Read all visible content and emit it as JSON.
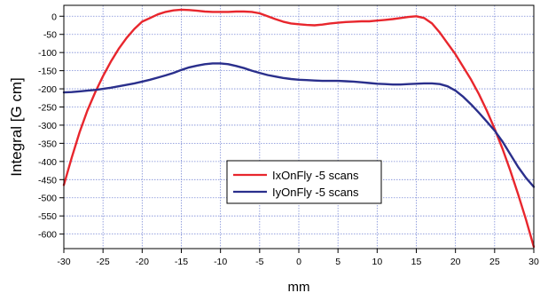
{
  "chart_data": {
    "type": "line",
    "title": "",
    "xlabel": "mm",
    "ylabel": "Integral [G cm]",
    "xlim": [
      -30,
      30
    ],
    "ylim": [
      -640,
      30
    ],
    "xticks": [
      -30,
      -25,
      -20,
      -15,
      -10,
      -5,
      0,
      5,
      10,
      15,
      20,
      25,
      30
    ],
    "yticks": [
      0,
      -50,
      -100,
      -150,
      -200,
      -250,
      -300,
      -350,
      -400,
      -450,
      -500,
      -550,
      -600
    ],
    "grid": true,
    "legend_position": "lower-center",
    "series": [
      {
        "name": "IxOnFly -5 scans",
        "color": "#e8262d",
        "x": [
          -30,
          -29,
          -28,
          -27,
          -26,
          -25,
          -24,
          -23,
          -22,
          -21,
          -20,
          -19,
          -18,
          -17,
          -16,
          -15,
          -14,
          -13,
          -12,
          -11,
          -10,
          -9,
          -8,
          -7,
          -6,
          -5,
          -4,
          -3,
          -2,
          -1,
          0,
          1,
          2,
          3,
          4,
          5,
          6,
          7,
          8,
          9,
          10,
          11,
          12,
          13,
          14,
          15,
          16,
          17,
          18,
          19,
          20,
          21,
          22,
          23,
          24,
          25,
          26,
          27,
          28,
          29,
          30
        ],
        "y": [
          -465,
          -390,
          -320,
          -260,
          -210,
          -165,
          -125,
          -90,
          -60,
          -35,
          -15,
          -5,
          5,
          12,
          16,
          18,
          17,
          15,
          13,
          12,
          12,
          12,
          13,
          13,
          12,
          8,
          0,
          -8,
          -15,
          -20,
          -22,
          -24,
          -25,
          -23,
          -20,
          -18,
          -16,
          -15,
          -14,
          -14,
          -12,
          -10,
          -8,
          -5,
          -2,
          0,
          -5,
          -20,
          -45,
          -75,
          -105,
          -140,
          -175,
          -215,
          -260,
          -310,
          -365,
          -425,
          -490,
          -560,
          -635
        ]
      },
      {
        "name": "IyOnFly -5 scans",
        "color": "#2a2f8c",
        "x": [
          -30,
          -29,
          -28,
          -27,
          -26,
          -25,
          -24,
          -23,
          -22,
          -21,
          -20,
          -19,
          -18,
          -17,
          -16,
          -15,
          -14,
          -13,
          -12,
          -11,
          -10,
          -9,
          -8,
          -7,
          -6,
          -5,
          -4,
          -3,
          -2,
          -1,
          0,
          1,
          2,
          3,
          4,
          5,
          6,
          7,
          8,
          9,
          10,
          11,
          12,
          13,
          14,
          15,
          16,
          17,
          18,
          19,
          20,
          21,
          22,
          23,
          24,
          25,
          26,
          27,
          28,
          29,
          30
        ],
        "y": [
          -210,
          -209,
          -207,
          -205,
          -203,
          -200,
          -197,
          -193,
          -189,
          -185,
          -180,
          -175,
          -169,
          -163,
          -156,
          -148,
          -141,
          -136,
          -132,
          -130,
          -130,
          -132,
          -137,
          -143,
          -150,
          -156,
          -162,
          -166,
          -170,
          -173,
          -175,
          -176,
          -177,
          -178,
          -178,
          -178,
          -179,
          -180,
          -182,
          -184,
          -186,
          -187,
          -188,
          -188,
          -187,
          -186,
          -185,
          -185,
          -187,
          -193,
          -205,
          -222,
          -243,
          -266,
          -290,
          -315,
          -345,
          -380,
          -415,
          -445,
          -470
        ]
      }
    ]
  }
}
